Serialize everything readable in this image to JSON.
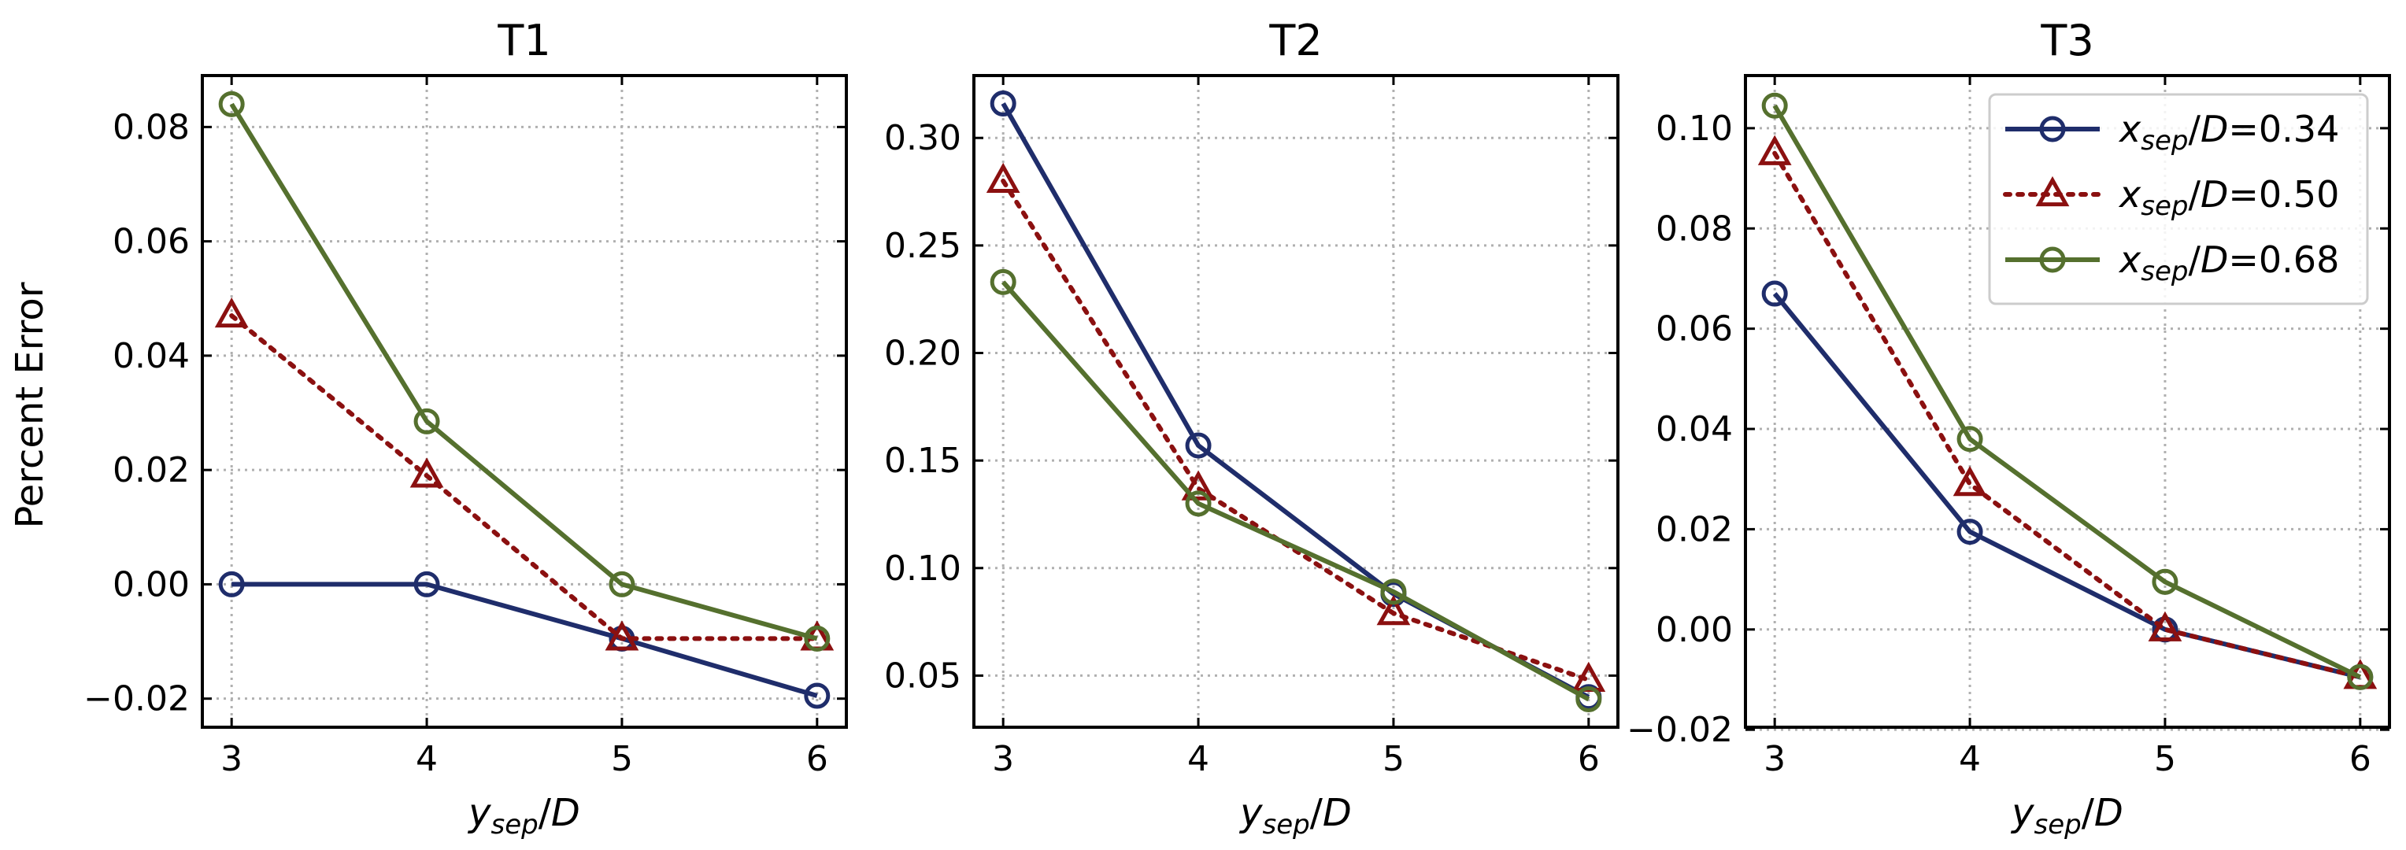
{
  "chart_data": {
    "type": "line",
    "ylabel": "Percent Error",
    "xlabel": {
      "var": "y",
      "sub": "sep",
      "rest": "/D"
    },
    "legend": {
      "placement": "top-right of panel T3",
      "entries": [
        {
          "var": "x",
          "sub": "sep",
          "rest": "/D=0.34"
        },
        {
          "var": "x",
          "sub": "sep",
          "rest": "/D=0.50"
        },
        {
          "var": "x",
          "sub": "sep",
          "rest": "/D=0.68"
        }
      ]
    },
    "series_styles": [
      {
        "color": "#1f2d6b",
        "marker": "circle",
        "line": "solid"
      },
      {
        "color": "#8b1010",
        "marker": "triangle",
        "line": "dotted"
      },
      {
        "color": "#55702e",
        "marker": "circle",
        "line": "solid"
      }
    ],
    "x": [
      3,
      4,
      5,
      6
    ],
    "x_ticks": [
      "3",
      "4",
      "5",
      "6"
    ],
    "grid": true,
    "panels": [
      {
        "title": "T1",
        "ylim": [
          -0.025,
          0.089
        ],
        "y_ticks": [
          -0.02,
          0.0,
          0.02,
          0.04,
          0.06,
          0.08
        ],
        "y_tick_labels": [
          "−0.02",
          "0.00",
          "0.02",
          "0.04",
          "0.06",
          "0.08"
        ],
        "series": [
          {
            "name": "xsep/D=0.34",
            "values": [
              0.0,
              0.0,
              -0.0095,
              -0.0195
            ]
          },
          {
            "name": "xsep/D=0.50",
            "values": [
              0.047,
              0.019,
              -0.0095,
              -0.0095
            ]
          },
          {
            "name": "xsep/D=0.68",
            "values": [
              0.084,
              0.0285,
              0.0,
              -0.0095
            ]
          }
        ]
      },
      {
        "title": "T2",
        "ylim": [
          0.026,
          0.329
        ],
        "y_ticks": [
          0.05,
          0.1,
          0.15,
          0.2,
          0.25,
          0.3
        ],
        "y_tick_labels": [
          "0.05",
          "0.10",
          "0.15",
          "0.20",
          "0.25",
          "0.30"
        ],
        "series": [
          {
            "name": "xsep/D=0.34",
            "values": [
              0.316,
              0.157,
              0.088,
              0.04
            ]
          },
          {
            "name": "xsep/D=0.50",
            "values": [
              0.28,
              0.137,
              0.079,
              0.048
            ]
          },
          {
            "name": "xsep/D=0.68",
            "values": [
              0.233,
              0.13,
              0.089,
              0.039
            ]
          }
        ]
      },
      {
        "title": "T3",
        "ylim": [
          -0.0195,
          0.1105
        ],
        "y_ticks": [
          -0.02,
          0.0,
          0.02,
          0.04,
          0.06,
          0.08,
          0.1
        ],
        "y_tick_labels": [
          "−0.02",
          "0.00",
          "0.02",
          "0.04",
          "0.06",
          "0.08",
          "0.10"
        ],
        "series": [
          {
            "name": "xsep/D=0.34",
            "values": [
              0.067,
              0.0195,
              0.0,
              -0.0095
            ]
          },
          {
            "name": "xsep/D=0.50",
            "values": [
              0.095,
              0.029,
              0.0,
              -0.0095
            ]
          },
          {
            "name": "xsep/D=0.68",
            "values": [
              0.1045,
              0.038,
              0.0095,
              -0.0095
            ]
          }
        ]
      }
    ]
  }
}
